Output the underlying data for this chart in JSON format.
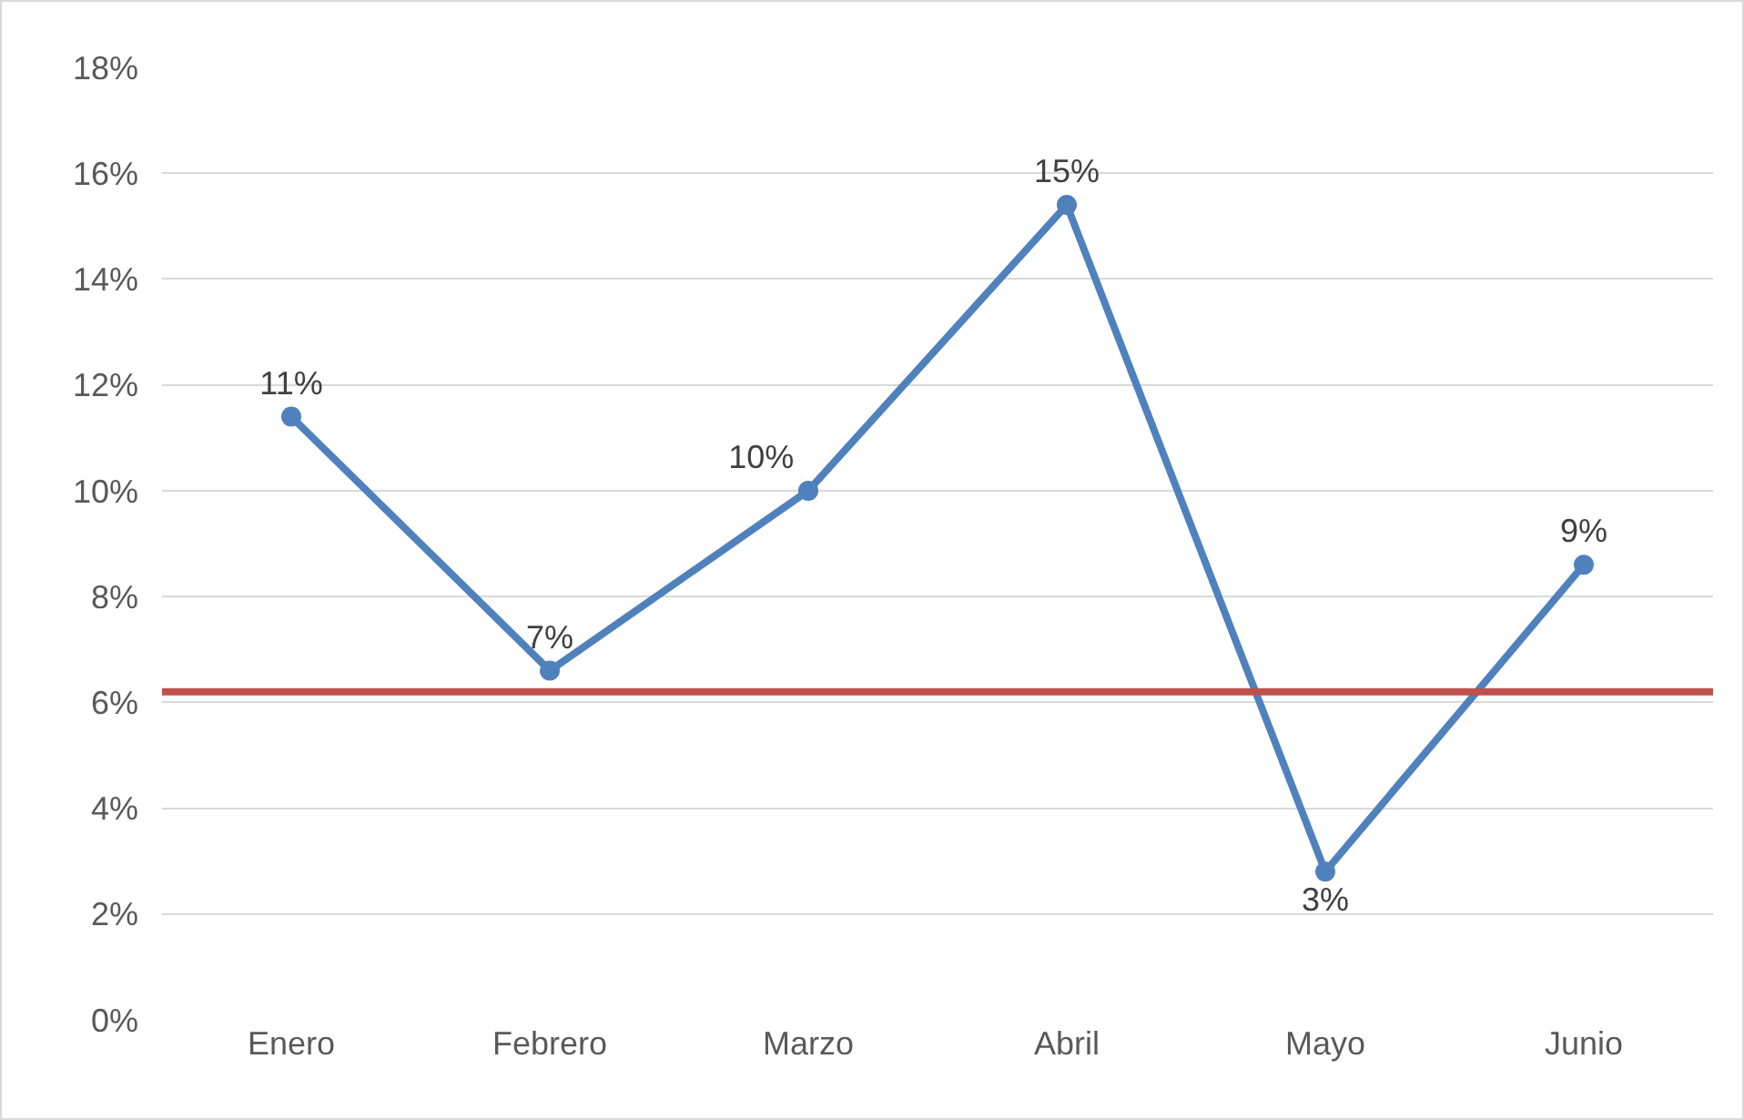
{
  "chart_data": {
    "type": "line",
    "categories": [
      "Enero",
      "Febrero",
      "Marzo",
      "Abril",
      "Mayo",
      "Junio"
    ],
    "series": [
      {
        "color": "#4f81bd",
        "values": [
          11.4,
          6.6,
          10,
          15.4,
          2.8,
          8.6
        ],
        "value_labels": [
          "11%",
          "7%",
          "10%",
          "15%",
          "3%",
          "9%"
        ]
      }
    ],
    "ylim": [
      0,
      18
    ],
    "yticks": [
      {
        "value": 0,
        "label": "0%"
      },
      {
        "value": 2,
        "label": "2%"
      },
      {
        "value": 4,
        "label": "4%"
      },
      {
        "value": 6,
        "label": "6%"
      },
      {
        "value": 8,
        "label": "8%"
      },
      {
        "value": 10,
        "label": "10%"
      },
      {
        "value": 12,
        "label": "12%"
      },
      {
        "value": 14,
        "label": "14%"
      },
      {
        "value": 16,
        "label": "16%"
      },
      {
        "value": 18,
        "label": "18%"
      }
    ],
    "grid": "y",
    "marker": "circle",
    "line_style": "solid",
    "ref_lines": [
      {
        "axis": "y",
        "value": 6.2,
        "color": "#c0504d"
      }
    ]
  }
}
